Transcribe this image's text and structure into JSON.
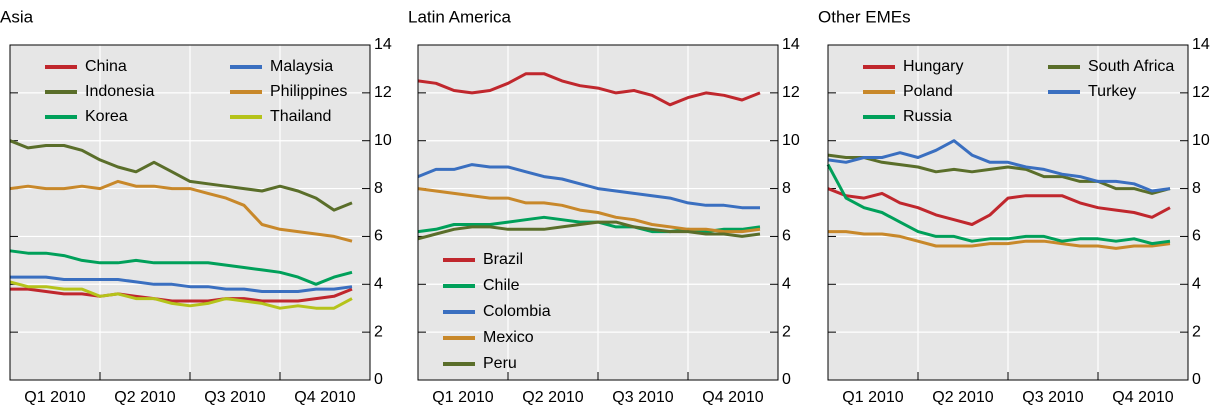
{
  "chart_data": [
    {
      "type": "line",
      "title": "Asia",
      "x": [
        0,
        0.2,
        0.4,
        0.6,
        0.8,
        1,
        1.2,
        1.4,
        1.6,
        1.8,
        2,
        2.2,
        2.4,
        2.6,
        2.8,
        3,
        3.2,
        3.4,
        3.6,
        3.8
      ],
      "xlim": [
        0,
        4
      ],
      "xticks": [
        {
          "value": 0.5,
          "label": "Q1 2010"
        },
        {
          "value": 1.5,
          "label": "Q2 2010"
        },
        {
          "value": 2.5,
          "label": "Q3 2010"
        },
        {
          "value": 3.5,
          "label": "Q4 2010"
        }
      ],
      "xgrid": [
        1,
        2,
        3
      ],
      "ylim": [
        0,
        14
      ],
      "yticks": [
        0,
        2,
        4,
        6,
        8,
        10,
        12,
        14
      ],
      "grid": true,
      "legend": "upper left",
      "legend_ncol": 2,
      "series": [
        {
          "name": "China",
          "color": "#c0272d",
          "values": [
            3.8,
            3.8,
            3.7,
            3.6,
            3.6,
            3.5,
            3.6,
            3.5,
            3.4,
            3.3,
            3.3,
            3.3,
            3.4,
            3.4,
            3.3,
            3.3,
            3.3,
            3.4,
            3.5,
            3.8
          ]
        },
        {
          "name": "Indonesia",
          "color": "#5a6e2a",
          "values": [
            10,
            9.7,
            9.8,
            9.8,
            9.6,
            9.2,
            8.9,
            8.7,
            9.1,
            8.7,
            8.3,
            8.2,
            8.1,
            8.0,
            7.9,
            8.1,
            7.9,
            7.6,
            7.1,
            7.4
          ]
        },
        {
          "name": "Korea",
          "color": "#00a05a",
          "values": [
            5.4,
            5.3,
            5.3,
            5.2,
            5.0,
            4.9,
            4.9,
            5.0,
            4.9,
            4.9,
            4.9,
            4.9,
            4.8,
            4.7,
            4.6,
            4.5,
            4.3,
            4.0,
            4.3,
            4.5
          ]
        },
        {
          "name": "Malaysia",
          "color": "#3a6fc0",
          "values": [
            4.3,
            4.3,
            4.3,
            4.2,
            4.2,
            4.2,
            4.2,
            4.1,
            4.0,
            4.0,
            3.9,
            3.9,
            3.8,
            3.8,
            3.7,
            3.7,
            3.7,
            3.8,
            3.8,
            3.9
          ]
        },
        {
          "name": "Philippines",
          "color": "#c8882a",
          "values": [
            8.0,
            8.1,
            8.0,
            8.0,
            8.1,
            8.0,
            8.3,
            8.1,
            8.1,
            8.0,
            8.0,
            7.8,
            7.6,
            7.3,
            6.5,
            6.3,
            6.2,
            6.1,
            6.0,
            5.8
          ]
        },
        {
          "name": "Thailand",
          "color": "#b5c31a",
          "values": [
            4.1,
            3.9,
            3.9,
            3.8,
            3.8,
            3.5,
            3.6,
            3.4,
            3.4,
            3.2,
            3.1,
            3.2,
            3.4,
            3.3,
            3.2,
            3.0,
            3.1,
            3.0,
            3.0,
            3.4
          ]
        }
      ]
    },
    {
      "type": "line",
      "title": "Latin America",
      "x": [
        0,
        0.2,
        0.4,
        0.6,
        0.8,
        1,
        1.2,
        1.4,
        1.6,
        1.8,
        2,
        2.2,
        2.4,
        2.6,
        2.8,
        3,
        3.2,
        3.4,
        3.6,
        3.8
      ],
      "xlim": [
        0,
        4
      ],
      "xticks": [
        {
          "value": 0.5,
          "label": "Q1 2010"
        },
        {
          "value": 1.5,
          "label": "Q2 2010"
        },
        {
          "value": 2.5,
          "label": "Q3 2010"
        },
        {
          "value": 3.5,
          "label": "Q4 2010"
        }
      ],
      "xgrid": [
        1,
        2,
        3
      ],
      "ylim": [
        0,
        14
      ],
      "yticks": [
        0,
        2,
        4,
        6,
        8,
        10,
        12,
        14
      ],
      "grid": true,
      "legend": "lower left",
      "legend_ncol": 1,
      "series": [
        {
          "name": "Brazil",
          "color": "#c0272d",
          "values": [
            12.5,
            12.4,
            12.1,
            12.0,
            12.1,
            12.4,
            12.8,
            12.8,
            12.5,
            12.3,
            12.2,
            12.0,
            12.1,
            11.9,
            11.5,
            11.8,
            12.0,
            11.9,
            11.7,
            12.0
          ]
        },
        {
          "name": "Chile",
          "color": "#00a05a",
          "values": [
            6.2,
            6.3,
            6.5,
            6.5,
            6.5,
            6.6,
            6.7,
            6.8,
            6.7,
            6.6,
            6.6,
            6.4,
            6.4,
            6.2,
            6.2,
            6.3,
            6.2,
            6.3,
            6.3,
            6.4
          ]
        },
        {
          "name": "Colombia",
          "color": "#3a6fc0",
          "values": [
            8.5,
            8.8,
            8.8,
            9.0,
            8.9,
            8.9,
            8.7,
            8.5,
            8.4,
            8.2,
            8.0,
            7.9,
            7.8,
            7.7,
            7.6,
            7.4,
            7.3,
            7.3,
            7.2,
            7.2
          ]
        },
        {
          "name": "Mexico",
          "color": "#c8882a",
          "values": [
            8.0,
            7.9,
            7.8,
            7.7,
            7.6,
            7.6,
            7.4,
            7.4,
            7.3,
            7.1,
            7.0,
            6.8,
            6.7,
            6.5,
            6.4,
            6.3,
            6.3,
            6.2,
            6.2,
            6.3
          ]
        },
        {
          "name": "Peru",
          "color": "#5a6e2a",
          "values": [
            5.9,
            6.1,
            6.3,
            6.4,
            6.4,
            6.3,
            6.3,
            6.3,
            6.4,
            6.5,
            6.6,
            6.6,
            6.4,
            6.3,
            6.2,
            6.2,
            6.1,
            6.1,
            6.0,
            6.1
          ]
        }
      ]
    },
    {
      "type": "line",
      "title": "Other EMEs",
      "x": [
        0,
        0.2,
        0.4,
        0.6,
        0.8,
        1,
        1.2,
        1.4,
        1.6,
        1.8,
        2,
        2.2,
        2.4,
        2.6,
        2.8,
        3,
        3.2,
        3.4,
        3.6,
        3.8
      ],
      "xlim": [
        0,
        4
      ],
      "xticks": [
        {
          "value": 0.5,
          "label": "Q1 2010"
        },
        {
          "value": 1.5,
          "label": "Q2 2010"
        },
        {
          "value": 2.5,
          "label": "Q3 2010"
        },
        {
          "value": 3.5,
          "label": "Q4 2010"
        }
      ],
      "xgrid": [
        1,
        2,
        3
      ],
      "ylim": [
        0,
        14
      ],
      "yticks": [
        0,
        2,
        4,
        6,
        8,
        10,
        12,
        14
      ],
      "grid": true,
      "legend": "upper left",
      "legend_ncol": 2,
      "series": [
        {
          "name": "Hungary",
          "color": "#c0272d",
          "values": [
            8.0,
            7.7,
            7.6,
            7.8,
            7.4,
            7.2,
            6.9,
            6.7,
            6.5,
            6.9,
            7.6,
            7.7,
            7.7,
            7.7,
            7.4,
            7.2,
            7.1,
            7.0,
            6.8,
            7.2
          ]
        },
        {
          "name": "Poland",
          "color": "#c8882a",
          "values": [
            6.2,
            6.2,
            6.1,
            6.1,
            6.0,
            5.8,
            5.6,
            5.6,
            5.6,
            5.7,
            5.7,
            5.8,
            5.8,
            5.7,
            5.6,
            5.6,
            5.5,
            5.6,
            5.6,
            5.7
          ]
        },
        {
          "name": "Russia",
          "color": "#00a05a",
          "values": [
            9.0,
            7.6,
            7.2,
            7.0,
            6.6,
            6.2,
            6.0,
            6.0,
            5.8,
            5.9,
            5.9,
            6.0,
            6.0,
            5.8,
            5.9,
            5.9,
            5.8,
            5.9,
            5.7,
            5.8
          ]
        },
        {
          "name": "South Africa",
          "color": "#5a6e2a",
          "values": [
            9.4,
            9.3,
            9.3,
            9.1,
            9.0,
            8.9,
            8.7,
            8.8,
            8.7,
            8.8,
            8.9,
            8.8,
            8.5,
            8.5,
            8.3,
            8.3,
            8.0,
            8.0,
            7.8,
            8.0
          ]
        },
        {
          "name": "Turkey",
          "color": "#3a6fc0",
          "values": [
            9.2,
            9.1,
            9.3,
            9.3,
            9.5,
            9.3,
            9.6,
            10.0,
            9.4,
            9.1,
            9.1,
            8.9,
            8.8,
            8.6,
            8.5,
            8.3,
            8.3,
            8.2,
            7.9,
            8.0
          ]
        }
      ]
    }
  ]
}
